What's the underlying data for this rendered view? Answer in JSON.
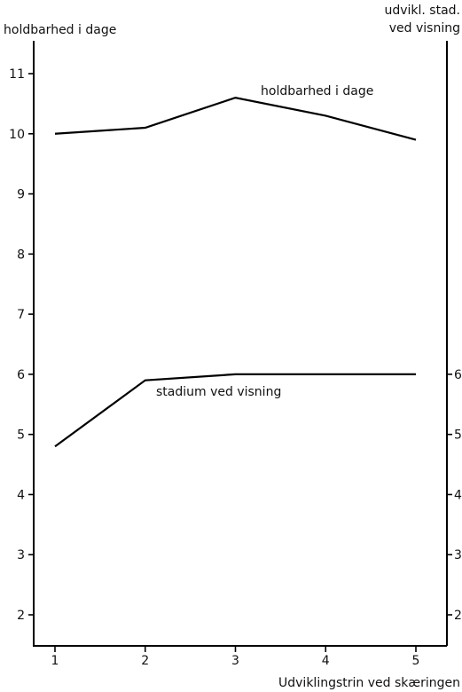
{
  "chart_data": {
    "type": "line",
    "x": [
      1,
      2,
      3,
      4,
      5
    ],
    "xlabel": "Udviklingstrin ved skæringen",
    "ylabel_left": "holdbarhed i dage",
    "ylabel_right_line1": "udvikl. stad.",
    "ylabel_right_line2": "ved visning",
    "ylim": [
      1.5,
      11.5
    ],
    "yticks_left": [
      2,
      3,
      4,
      5,
      6,
      7,
      8,
      9,
      10,
      11
    ],
    "yticks_right": [
      2,
      3,
      4,
      5,
      6
    ],
    "xticks": [
      1,
      2,
      3,
      4,
      5
    ],
    "grid": false,
    "series": [
      {
        "name": "holdbarhed i dage",
        "axis": "left",
        "values": [
          10.0,
          10.1,
          10.6,
          10.3,
          9.9
        ]
      },
      {
        "name": "stadium ved visning",
        "axis": "right",
        "values": [
          4.8,
          5.9,
          6.0,
          6.0,
          6.0
        ]
      }
    ]
  }
}
